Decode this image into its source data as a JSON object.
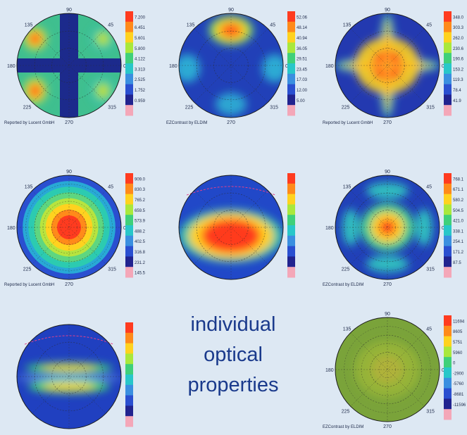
{
  "caption": [
    "individual",
    "optical",
    "properties"
  ],
  "chart_data": [
    {
      "type": "heatmap",
      "pattern": "cross",
      "polar_labels": {
        "top": "90",
        "upleft": "135",
        "upright": "45",
        "left": "180",
        "right": "0",
        "downleft": "225",
        "downright": "315",
        "bottom": "270"
      },
      "colorbar": [
        "7.200",
        "6.451",
        "5.601",
        "5.800",
        "4.122",
        "3.313",
        "2.525",
        "1.752",
        "0.959",
        ""
      ],
      "credit": "Reported by Lucent GmbH"
    },
    {
      "type": "heatmap",
      "pattern": "lobes",
      "polar_labels": {
        "top": "90",
        "upleft": "135",
        "upright": "45",
        "left": "180",
        "right": "0",
        "downleft": "225",
        "downright": "315",
        "bottom": "270"
      },
      "colorbar": [
        "52.06",
        "48.14",
        "40.94",
        "36.05",
        "29.51",
        "23.45",
        "17.03",
        "12.00",
        "5.00",
        ""
      ],
      "credit": "EZContrast by ELDIM"
    },
    {
      "type": "heatmap",
      "pattern": "star",
      "polar_labels": {
        "top": "90",
        "upleft": "135",
        "upright": "45",
        "left": "180",
        "right": "0",
        "downleft": "225",
        "downright": "315",
        "bottom": "270"
      },
      "colorbar": [
        "348.0",
        "303.3",
        "262.0",
        "230.6",
        "190.6",
        "153.2",
        "119.3",
        "78.4",
        "41.9",
        ""
      ],
      "credit": "Reported by Lucent GmbH"
    },
    {
      "type": "heatmap",
      "pattern": "center",
      "polar_labels": {
        "top": "90",
        "upleft": "135",
        "upright": "45",
        "left": "180",
        "right": "0",
        "downleft": "225",
        "downright": "315",
        "bottom": "270"
      },
      "colorbar": [
        "909.0",
        "830.3",
        "765.2",
        "659.5",
        "573.9",
        "488.2",
        "402.5",
        "316.8",
        "231.2",
        "145.5"
      ],
      "credit": "Reported by Lucent GmbH"
    },
    {
      "type": "heatmap",
      "pattern": "lens",
      "polar_labels": {},
      "colorbar": [],
      "credit": ""
    },
    {
      "type": "heatmap",
      "pattern": "rings",
      "polar_labels": {
        "top": "90",
        "upleft": "135",
        "upright": "45",
        "left": "180",
        "right": "0",
        "downleft": "225",
        "downright": "315",
        "bottom": "270"
      },
      "colorbar": [
        "768.1",
        "671.1",
        "580.2",
        "504.5",
        "421.0",
        "338.1",
        "254.1",
        "171.2",
        "87.5",
        ""
      ],
      "credit": "EZContrast by ELDIM"
    },
    {
      "type": "heatmap",
      "pattern": "bands",
      "polar_labels": {},
      "colorbar": [],
      "credit": ""
    },
    {
      "type": "heatmap",
      "pattern": "uniform",
      "polar_labels": {
        "top": "90",
        "upleft": "135",
        "upright": "45",
        "left": "180",
        "right": "0",
        "downleft": "225",
        "downright": "315",
        "bottom": "270"
      },
      "colorbar": [
        "11694",
        "8605",
        "5751",
        "5960",
        "0",
        "-2900",
        "-5760",
        "-8681",
        "-11596",
        ""
      ],
      "credit": "EZContrast by ELDIM"
    }
  ]
}
